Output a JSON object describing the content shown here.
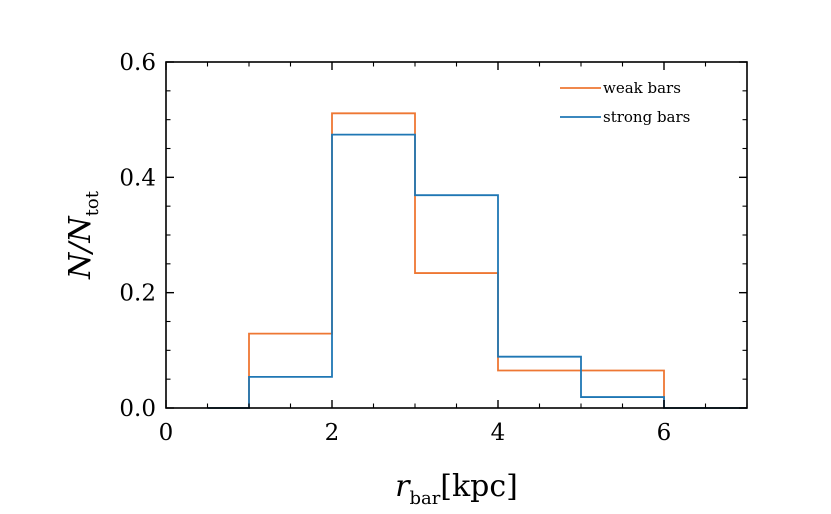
{
  "chart_data": {
    "type": "histogram-step",
    "xlabel": {
      "main": "r",
      "sub": "bar",
      "unit": "[kpc]"
    },
    "ylabel": {
      "main": "N/N",
      "sub": "tot"
    },
    "xlim": [
      0,
      7
    ],
    "ylim": [
      0,
      0.6
    ],
    "x_ticks": [
      0,
      2,
      4,
      6
    ],
    "x_tick_labels": [
      "0",
      "2",
      "4",
      "6"
    ],
    "y_ticks": [
      0.0,
      0.2,
      0.4,
      0.6
    ],
    "y_tick_labels": [
      "0.0",
      "0.2",
      "0.4",
      "0.6"
    ],
    "x_minor_step": 0.5,
    "y_minor_step": 0.05,
    "grid": false,
    "legend_position": "top-right",
    "series": [
      {
        "name": "weak bars",
        "color": "#ee7733",
        "bin_edges": [
          0.5,
          1,
          2,
          3,
          4,
          5,
          6,
          7
        ],
        "values": [
          0.0,
          0.129,
          0.511,
          0.234,
          0.065,
          0.065,
          0.0
        ]
      },
      {
        "name": "strong bars",
        "color": "#1f77b4",
        "bin_edges": [
          0.5,
          1,
          2,
          3,
          4,
          5,
          6,
          7
        ],
        "values": [
          0.0,
          0.054,
          0.474,
          0.369,
          0.089,
          0.019,
          0.0
        ]
      }
    ]
  }
}
